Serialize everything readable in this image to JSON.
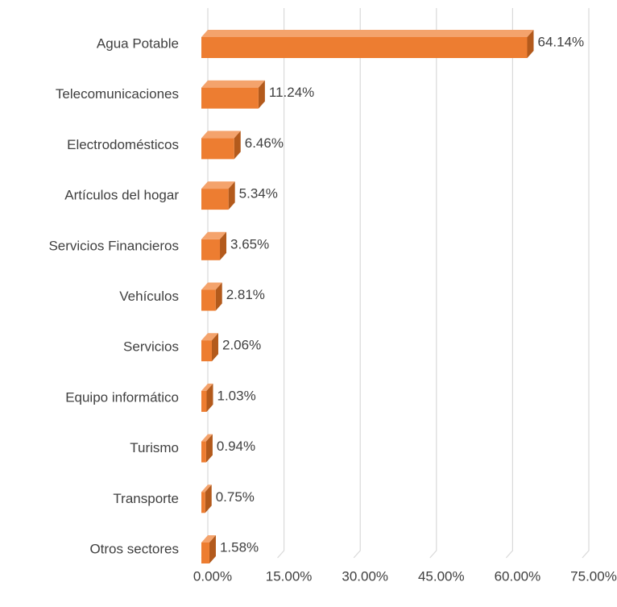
{
  "chart_data": {
    "type": "bar3d_horizontal",
    "categories": [
      "Agua Potable",
      "Telecomunicaciones",
      "Electrodomésticos",
      "Artículos del hogar",
      "Servicios Financieros",
      "Vehículos",
      "Servicios",
      "Equipo informático",
      "Turismo",
      "Transporte",
      "Otros sectores"
    ],
    "values": [
      64.14,
      11.24,
      6.46,
      5.34,
      3.65,
      2.81,
      2.06,
      1.03,
      0.94,
      0.75,
      1.58
    ],
    "value_labels": [
      "64.14%",
      "11.24%",
      "6.46%",
      "5.34%",
      "3.65%",
      "2.81%",
      "2.06%",
      "1.03%",
      "0.94%",
      "0.75%",
      "1.58%"
    ],
    "color": "#ed7d31",
    "xlim": [
      0,
      75
    ],
    "xticks": [
      {
        "value": 0,
        "label": "0.00%"
      },
      {
        "value": 15,
        "label": "15.00%"
      },
      {
        "value": 30,
        "label": "30.00%"
      },
      {
        "value": 45,
        "label": "45.00%"
      },
      {
        "value": 60,
        "label": "60.00%"
      },
      {
        "value": 75,
        "label": "75.00%"
      }
    ],
    "grid": true
  }
}
